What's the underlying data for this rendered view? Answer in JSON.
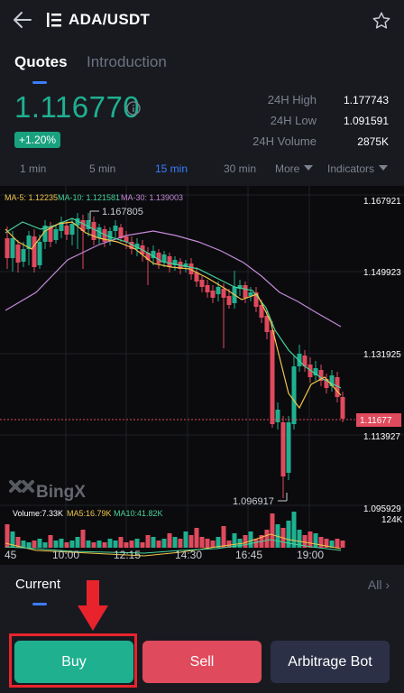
{
  "header": {
    "pair": "ADA/USDT"
  },
  "tabs": {
    "quotes": "Quotes",
    "introduction": "Introduction"
  },
  "price": {
    "last": "1.116770",
    "change": "+1.20%"
  },
  "stats": [
    {
      "label": "24H High",
      "value": "1.177743"
    },
    {
      "label": "24H Low",
      "value": "1.091591"
    },
    {
      "label": "24H Volume",
      "value": "2875K"
    }
  ],
  "timeframes": [
    "1 min",
    "5 min",
    "15 min",
    "30 min",
    "More",
    "Indicators"
  ],
  "active_timeframe": "15 min",
  "chart": {
    "ma_legend": {
      "ma5": "MA-5: 1.12235",
      "ma10": "MA-10: 1.121581",
      "ma30": "MA-30: 1.139003"
    },
    "price_labels": [
      "1.167921",
      "1.149923",
      "1.131925",
      "1.113927",
      "1.095929"
    ],
    "current_price_tag": "1.11677",
    "high_marker": "1.167805",
    "low_marker": "1.096917",
    "volume_legend": {
      "volume": "Volume:7.33K",
      "ma5": "MA5:16.79K",
      "ma10": "MA10:41.82K"
    },
    "volume_axis": "124K",
    "time_labels": [
      "45",
      "10:00",
      "12:15",
      "14:30",
      "16:45",
      "19:00"
    ],
    "watermark": "BingX",
    "colors": {
      "up": "#1fb090",
      "down": "#e04a5d",
      "ma5": "#f0c64b",
      "ma10": "#46d39a",
      "ma30": "#c58ad8"
    }
  },
  "bottom": {
    "current": "Current",
    "all": "All",
    "buy": "Buy",
    "sell": "Sell",
    "arbitrage": "Arbitrage Bot"
  }
}
